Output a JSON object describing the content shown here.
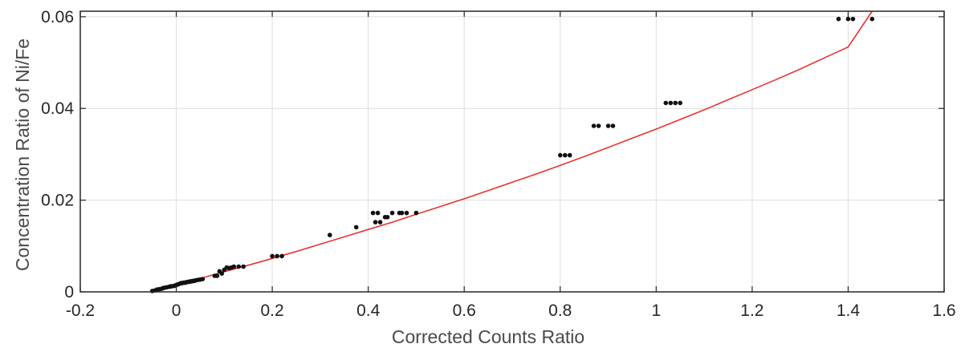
{
  "chart_data": {
    "type": "scatter",
    "title": "",
    "xlabel": "Corrected Counts Ratio",
    "ylabel": "Concentration Ratio of Ni/Fe",
    "xlim": [
      -0.2,
      1.6
    ],
    "ylim": [
      0,
      0.0612
    ],
    "x_ticks": [
      "-0.2",
      "0",
      "0.2",
      "0.4",
      "0.6",
      "0.8",
      "1",
      "1.2",
      "1.4",
      "1.6"
    ],
    "x_tick_values": [
      -0.2,
      0,
      0.2,
      0.4,
      0.6,
      0.8,
      1.0,
      1.2,
      1.4,
      1.6
    ],
    "y_ticks": [
      "0",
      "0.02",
      "0.04",
      "0.06"
    ],
    "y_tick_values": [
      0,
      0.02,
      0.04,
      0.06
    ],
    "grid": true,
    "legend": "none",
    "colors": {
      "points": "#111111",
      "fit": "#e8332f",
      "grid": "#dedede",
      "axes": "#262626"
    },
    "series": [
      {
        "kind": "points",
        "x": [
          -0.05,
          -0.045,
          -0.04,
          -0.035,
          -0.03,
          -0.028,
          -0.025,
          -0.02,
          -0.015,
          -0.012,
          -0.01,
          -0.005,
          -0.002,
          0,
          0.003,
          0.005,
          0.008,
          0.01,
          0.012,
          0.015,
          0.018,
          0.02,
          0.022,
          0.025,
          0.028,
          0.03,
          0.033,
          0.035,
          0.038,
          0.04,
          0.045,
          0.05,
          0.055,
          0.08,
          0.085,
          0.09,
          0.1,
          0.11,
          0.12,
          0.13,
          0.14,
          0.095,
          0.105,
          0.115,
          0.2,
          0.21,
          0.22,
          0.32,
          0.375,
          0.415,
          0.425,
          0.435,
          0.44,
          0.41,
          0.42,
          0.45,
          0.465,
          0.47,
          0.48,
          0.5,
          0.8,
          0.81,
          0.82,
          0.87,
          0.88,
          0.9,
          0.91,
          1.02,
          1.03,
          1.04,
          1.05,
          1.38,
          1.4,
          1.41,
          1.45
        ],
        "y": [
          0.0002,
          0.0003,
          0.0005,
          0.0006,
          0.0007,
          0.0008,
          0.0009,
          0.001,
          0.0011,
          0.0012,
          0.0012,
          0.0013,
          0.0014,
          0.0015,
          0.0016,
          0.0017,
          0.0018,
          0.0019,
          0.0019,
          0.002,
          0.002,
          0.0021,
          0.0021,
          0.0022,
          0.0022,
          0.0023,
          0.0023,
          0.0024,
          0.0024,
          0.0025,
          0.0026,
          0.0027,
          0.0028,
          0.0035,
          0.0035,
          0.0045,
          0.0048,
          0.0052,
          0.0055,
          0.0055,
          0.0055,
          0.004,
          0.0053,
          0.0053,
          0.0078,
          0.0078,
          0.0078,
          0.0124,
          0.0141,
          0.0152,
          0.0152,
          0.0163,
          0.0163,
          0.0172,
          0.0172,
          0.0172,
          0.0172,
          0.0172,
          0.0172,
          0.0172,
          0.0298,
          0.0298,
          0.0298,
          0.0362,
          0.0362,
          0.0362,
          0.0362,
          0.0412,
          0.0412,
          0.0412,
          0.0412,
          0.0595,
          0.0595,
          0.0595,
          0.0595
        ]
      },
      {
        "kind": "fit",
        "x": [
          -0.05,
          0.0,
          0.05,
          0.1,
          0.15,
          0.2,
          0.25,
          0.3,
          0.35,
          0.4,
          0.45,
          0.5,
          0.55,
          0.6,
          0.65,
          0.7,
          0.75,
          0.8,
          0.85,
          0.9,
          0.95,
          1.0,
          1.05,
          1.1,
          1.15,
          1.2,
          1.25,
          1.3,
          1.35,
          1.4,
          1.45
        ],
        "y": [
          0.0001,
          0.0015,
          0.0029,
          0.0044,
          0.0058,
          0.0073,
          0.0088,
          0.0104,
          0.012,
          0.0136,
          0.0152,
          0.0169,
          0.0186,
          0.0203,
          0.0221,
          0.0239,
          0.0257,
          0.0276,
          0.0295,
          0.0315,
          0.0335,
          0.0355,
          0.0376,
          0.0397,
          0.0419,
          0.0441,
          0.0463,
          0.0486,
          0.051,
          0.0534,
          0.0612
        ]
      }
    ]
  }
}
